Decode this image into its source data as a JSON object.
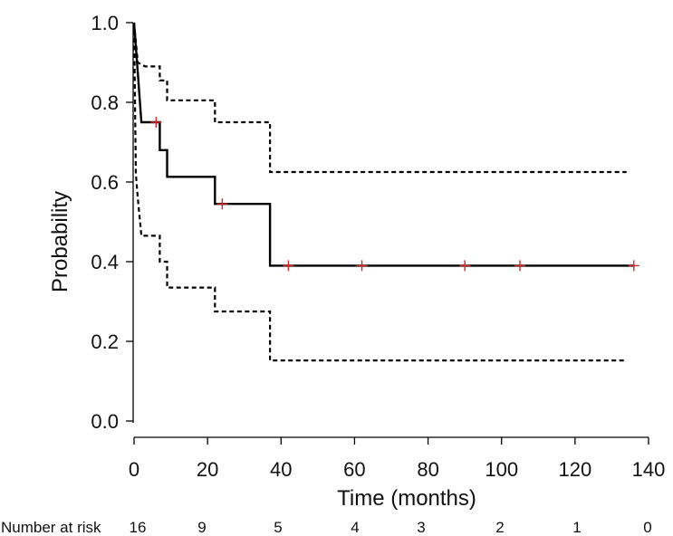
{
  "chart_data": {
    "type": "line",
    "title": "",
    "xlabel": "Time (months)",
    "ylabel": "Probability",
    "xlim": [
      0,
      140
    ],
    "ylim": [
      0,
      1
    ],
    "x_ticks": [
      "0",
      "20",
      "40",
      "60",
      "80",
      "100",
      "120",
      "140"
    ],
    "y_ticks": [
      "0.0",
      "0.2",
      "0.4",
      "0.6",
      "0.8",
      "1.0"
    ],
    "grid": false,
    "legend": "none",
    "series": [
      {
        "style": "solid",
        "color": "#000000",
        "step": true,
        "points": [
          [
            0,
            1.0
          ],
          [
            1,
            0.875
          ],
          [
            2,
            0.75
          ],
          [
            7,
            0.75
          ],
          [
            7,
            0.68
          ],
          [
            9,
            0.68
          ],
          [
            9,
            0.613
          ],
          [
            22,
            0.613
          ],
          [
            22,
            0.545
          ],
          [
            37,
            0.545
          ],
          [
            37,
            0.39
          ],
          [
            136,
            0.39
          ]
        ]
      },
      {
        "style": "dashed",
        "color": "#000000",
        "step": true,
        "points": [
          [
            0,
            1.0
          ],
          [
            1,
            0.9
          ],
          [
            3,
            0.89
          ],
          [
            7,
            0.89
          ],
          [
            7,
            0.855
          ],
          [
            9,
            0.855
          ],
          [
            9,
            0.805
          ],
          [
            22,
            0.805
          ],
          [
            22,
            0.75
          ],
          [
            37,
            0.75
          ],
          [
            37,
            0.625
          ],
          [
            134,
            0.625
          ]
        ]
      },
      {
        "style": "dashed",
        "color": "#000000",
        "step": true,
        "points": [
          [
            0,
            1.0
          ],
          [
            0.5,
            0.62
          ],
          [
            1,
            0.56
          ],
          [
            2,
            0.465
          ],
          [
            7,
            0.465
          ],
          [
            7,
            0.4
          ],
          [
            9,
            0.4
          ],
          [
            9,
            0.335
          ],
          [
            22,
            0.335
          ],
          [
            22,
            0.275
          ],
          [
            37,
            0.275
          ],
          [
            37,
            0.152
          ],
          [
            134,
            0.152
          ]
        ]
      }
    ],
    "censor_marks": {
      "color": "#d62728",
      "points": [
        [
          6,
          0.75
        ],
        [
          24,
          0.545
        ],
        [
          42,
          0.39
        ],
        [
          62,
          0.39
        ],
        [
          90,
          0.39
        ],
        [
          105,
          0.39
        ],
        [
          136,
          0.39
        ]
      ]
    },
    "risk_table": {
      "label": "Number at risk",
      "values": [
        "16",
        "9",
        "5",
        "4",
        "3",
        "2",
        "1",
        "0"
      ]
    }
  }
}
